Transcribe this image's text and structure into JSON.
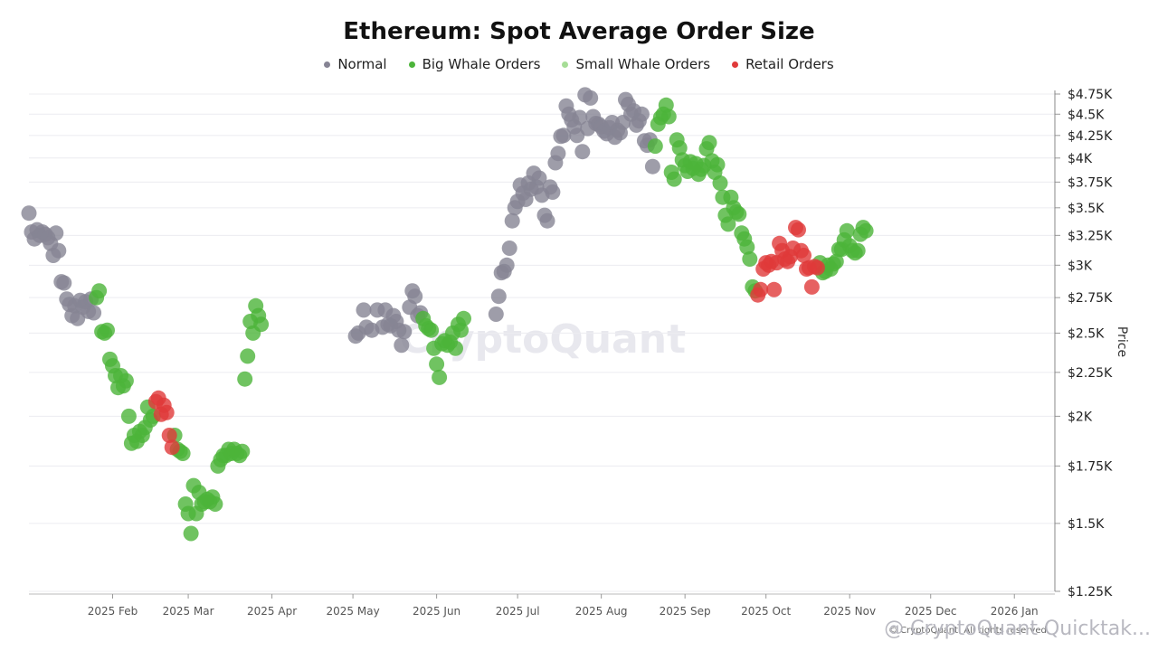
{
  "chart_data": {
    "type": "scatter",
    "title": "Ethereum: Spot Average Order Size",
    "ylabel": "Price",
    "xlabel": "",
    "y_scale": "log",
    "ylim": [
      1250,
      4750
    ],
    "y_ticks": [
      {
        "value": 4750,
        "label": "$4.75K"
      },
      {
        "value": 4500,
        "label": "$4.5K"
      },
      {
        "value": 4250,
        "label": "$4.25K"
      },
      {
        "value": 4000,
        "label": "$4K"
      },
      {
        "value": 3750,
        "label": "$3.75K"
      },
      {
        "value": 3500,
        "label": "$3.5K"
      },
      {
        "value": 3250,
        "label": "$3.25K"
      },
      {
        "value": 3000,
        "label": "$3K"
      },
      {
        "value": 2750,
        "label": "$2.75K"
      },
      {
        "value": 2500,
        "label": "$2.5K"
      },
      {
        "value": 2250,
        "label": "$2.25K"
      },
      {
        "value": 2000,
        "label": "$2K"
      },
      {
        "value": 1750,
        "label": "$1.75K"
      },
      {
        "value": 1500,
        "label": "$1.5K"
      },
      {
        "value": 1250,
        "label": "$1.25K"
      }
    ],
    "x_ticks": [
      {
        "day": 31,
        "label": "2025 Feb"
      },
      {
        "day": 59,
        "label": "2025 Mar"
      },
      {
        "day": 90,
        "label": "2025 Apr"
      },
      {
        "day": 120,
        "label": "2025 May"
      },
      {
        "day": 151,
        "label": "2025 Jun"
      },
      {
        "day": 181,
        "label": "2025 Jul"
      },
      {
        "day": 212,
        "label": "2025 Aug"
      },
      {
        "day": 243,
        "label": "2025 Sep"
      },
      {
        "day": 273,
        "label": "2025 Oct"
      },
      {
        "day": 304,
        "label": "2025 Nov"
      },
      {
        "day": 334,
        "label": "2025 Dec"
      },
      {
        "day": 365,
        "label": "2026 Jan"
      }
    ],
    "x_range_days": [
      0,
      380
    ],
    "x_axis_note": "x values are days since 2025-01-01",
    "legend": [
      {
        "name": "Normal",
        "color": "#868494"
      },
      {
        "name": "Big Whale Orders",
        "color": "#4cb43a"
      },
      {
        "name": "Small Whale Orders",
        "color": "#a6dd96"
      },
      {
        "name": "Retail Orders",
        "color": "#e03a3a"
      }
    ],
    "series": [
      {
        "name": "Normal",
        "color": "#868494",
        "points": [
          [
            0,
            3450
          ],
          [
            1,
            3280
          ],
          [
            2,
            3220
          ],
          [
            3,
            3300
          ],
          [
            4,
            3250
          ],
          [
            5,
            3280
          ],
          [
            6,
            3260
          ],
          [
            7,
            3230
          ],
          [
            8,
            3180
          ],
          [
            9,
            3080
          ],
          [
            10,
            3270
          ],
          [
            11,
            3120
          ],
          [
            12,
            2870
          ],
          [
            13,
            2860
          ],
          [
            14,
            2740
          ],
          [
            15,
            2700
          ],
          [
            16,
            2620
          ],
          [
            17,
            2690
          ],
          [
            18,
            2600
          ],
          [
            19,
            2730
          ],
          [
            20,
            2680
          ],
          [
            21,
            2720
          ],
          [
            22,
            2650
          ],
          [
            23,
            2740
          ],
          [
            24,
            2640
          ],
          [
            121,
            2480
          ],
          [
            122,
            2500
          ],
          [
            124,
            2660
          ],
          [
            125,
            2540
          ],
          [
            127,
            2520
          ],
          [
            129,
            2660
          ],
          [
            131,
            2540
          ],
          [
            132,
            2660
          ],
          [
            133,
            2560
          ],
          [
            134,
            2550
          ],
          [
            135,
            2620
          ],
          [
            136,
            2580
          ],
          [
            137,
            2520
          ],
          [
            138,
            2420
          ],
          [
            139,
            2510
          ],
          [
            141,
            2680
          ],
          [
            142,
            2800
          ],
          [
            143,
            2760
          ],
          [
            144,
            2620
          ],
          [
            145,
            2640
          ],
          [
            173,
            2630
          ],
          [
            174,
            2760
          ],
          [
            175,
            2940
          ],
          [
            176,
            2950
          ],
          [
            177,
            3000
          ],
          [
            178,
            3140
          ],
          [
            179,
            3380
          ],
          [
            180,
            3500
          ],
          [
            181,
            3560
          ],
          [
            182,
            3720
          ],
          [
            183,
            3640
          ],
          [
            184,
            3580
          ],
          [
            185,
            3740
          ],
          [
            186,
            3680
          ],
          [
            187,
            3840
          ],
          [
            188,
            3700
          ],
          [
            189,
            3790
          ],
          [
            190,
            3620
          ],
          [
            191,
            3430
          ],
          [
            192,
            3380
          ],
          [
            193,
            3700
          ],
          [
            194,
            3650
          ],
          [
            195,
            3950
          ],
          [
            196,
            4050
          ],
          [
            197,
            4240
          ],
          [
            198,
            4250
          ],
          [
            199,
            4600
          ],
          [
            200,
            4500
          ],
          [
            201,
            4430
          ],
          [
            202,
            4350
          ],
          [
            203,
            4250
          ],
          [
            204,
            4460
          ],
          [
            205,
            4070
          ],
          [
            206,
            4740
          ],
          [
            207,
            4330
          ],
          [
            208,
            4700
          ],
          [
            209,
            4470
          ],
          [
            210,
            4390
          ],
          [
            211,
            4380
          ],
          [
            212,
            4350
          ],
          [
            213,
            4300
          ],
          [
            214,
            4270
          ],
          [
            215,
            4340
          ],
          [
            216,
            4400
          ],
          [
            217,
            4230
          ],
          [
            218,
            4310
          ],
          [
            219,
            4280
          ],
          [
            220,
            4400
          ],
          [
            221,
            4680
          ],
          [
            222,
            4620
          ],
          [
            223,
            4500
          ],
          [
            224,
            4540
          ],
          [
            225,
            4370
          ],
          [
            226,
            4420
          ],
          [
            227,
            4500
          ],
          [
            228,
            4190
          ],
          [
            229,
            4140
          ],
          [
            230,
            4200
          ],
          [
            231,
            3910
          ]
        ]
      },
      {
        "name": "Big Whale Orders",
        "color": "#4cb43a",
        "points": [
          [
            25,
            2750
          ],
          [
            26,
            2800
          ],
          [
            27,
            2510
          ],
          [
            28,
            2500
          ],
          [
            29,
            2520
          ],
          [
            30,
            2330
          ],
          [
            31,
            2290
          ],
          [
            32,
            2230
          ],
          [
            33,
            2160
          ],
          [
            34,
            2230
          ],
          [
            35,
            2170
          ],
          [
            36,
            2200
          ],
          [
            37,
            2000
          ],
          [
            38,
            1860
          ],
          [
            39,
            1900
          ],
          [
            40,
            1870
          ],
          [
            41,
            1920
          ],
          [
            42,
            1900
          ],
          [
            43,
            1940
          ],
          [
            44,
            2050
          ],
          [
            45,
            1980
          ],
          [
            46,
            2000
          ],
          [
            54,
            1900
          ],
          [
            55,
            1830
          ],
          [
            56,
            1820
          ],
          [
            57,
            1810
          ],
          [
            58,
            1580
          ],
          [
            59,
            1540
          ],
          [
            60,
            1460
          ],
          [
            61,
            1660
          ],
          [
            62,
            1540
          ],
          [
            63,
            1630
          ],
          [
            64,
            1580
          ],
          [
            65,
            1590
          ],
          [
            66,
            1600
          ],
          [
            67,
            1590
          ],
          [
            68,
            1610
          ],
          [
            69,
            1580
          ],
          [
            70,
            1750
          ],
          [
            71,
            1780
          ],
          [
            72,
            1800
          ],
          [
            73,
            1800
          ],
          [
            74,
            1830
          ],
          [
            75,
            1810
          ],
          [
            76,
            1830
          ],
          [
            77,
            1810
          ],
          [
            78,
            1800
          ],
          [
            79,
            1820
          ],
          [
            80,
            2210
          ],
          [
            81,
            2350
          ],
          [
            82,
            2580
          ],
          [
            83,
            2500
          ],
          [
            84,
            2690
          ],
          [
            85,
            2620
          ],
          [
            86,
            2560
          ],
          [
            146,
            2600
          ],
          [
            147,
            2550
          ],
          [
            148,
            2530
          ],
          [
            149,
            2520
          ],
          [
            150,
            2400
          ],
          [
            151,
            2300
          ],
          [
            152,
            2220
          ],
          [
            153,
            2430
          ],
          [
            154,
            2450
          ],
          [
            155,
            2420
          ],
          [
            156,
            2440
          ],
          [
            157,
            2500
          ],
          [
            158,
            2400
          ],
          [
            159,
            2560
          ],
          [
            160,
            2520
          ],
          [
            161,
            2600
          ],
          [
            232,
            4130
          ],
          [
            233,
            4380
          ],
          [
            234,
            4460
          ],
          [
            235,
            4500
          ],
          [
            236,
            4610
          ],
          [
            237,
            4470
          ],
          [
            238,
            3850
          ],
          [
            239,
            3780
          ],
          [
            240,
            4200
          ],
          [
            241,
            4110
          ],
          [
            242,
            3980
          ],
          [
            243,
            3920
          ],
          [
            244,
            3860
          ],
          [
            245,
            3960
          ],
          [
            246,
            3890
          ],
          [
            247,
            3940
          ],
          [
            248,
            3830
          ],
          [
            249,
            3880
          ],
          [
            250,
            3920
          ],
          [
            251,
            4100
          ],
          [
            252,
            4170
          ],
          [
            253,
            3970
          ],
          [
            254,
            3850
          ],
          [
            255,
            3930
          ],
          [
            256,
            3740
          ],
          [
            257,
            3600
          ],
          [
            258,
            3430
          ],
          [
            259,
            3350
          ],
          [
            260,
            3600
          ],
          [
            261,
            3500
          ],
          [
            262,
            3460
          ],
          [
            263,
            3440
          ],
          [
            264,
            3270
          ],
          [
            265,
            3220
          ],
          [
            266,
            3150
          ],
          [
            267,
            3050
          ],
          [
            268,
            2830
          ],
          [
            269,
            2800
          ],
          [
            293,
            3020
          ],
          [
            294,
            2940
          ],
          [
            295,
            2950
          ],
          [
            296,
            3000
          ],
          [
            297,
            2970
          ],
          [
            298,
            3010
          ],
          [
            299,
            3030
          ],
          [
            300,
            3130
          ],
          [
            301,
            3130
          ],
          [
            302,
            3210
          ],
          [
            303,
            3290
          ],
          [
            304,
            3160
          ],
          [
            305,
            3120
          ],
          [
            306,
            3100
          ],
          [
            307,
            3120
          ],
          [
            308,
            3260
          ],
          [
            309,
            3320
          ],
          [
            310,
            3290
          ]
        ]
      },
      {
        "name": "Retail Orders",
        "color": "#e03a3a",
        "points": [
          [
            47,
            2080
          ],
          [
            48,
            2100
          ],
          [
            49,
            2010
          ],
          [
            50,
            2060
          ],
          [
            51,
            2020
          ],
          [
            52,
            1900
          ],
          [
            53,
            1840
          ],
          [
            270,
            2770
          ],
          [
            271,
            2810
          ],
          [
            272,
            2970
          ],
          [
            273,
            3020
          ],
          [
            274,
            3000
          ],
          [
            275,
            3030
          ],
          [
            276,
            2810
          ],
          [
            277,
            3020
          ],
          [
            278,
            3180
          ],
          [
            279,
            3120
          ],
          [
            280,
            3050
          ],
          [
            281,
            3030
          ],
          [
            282,
            3070
          ],
          [
            283,
            3140
          ],
          [
            284,
            3320
          ],
          [
            285,
            3300
          ],
          [
            286,
            3120
          ],
          [
            287,
            3080
          ],
          [
            288,
            2970
          ],
          [
            289,
            2980
          ],
          [
            290,
            2830
          ],
          [
            291,
            2990
          ],
          [
            292,
            2980
          ]
        ]
      }
    ]
  },
  "watermark": "CryptoQuant",
  "footer_handle": "@ CryptoQuant Quicktak...",
  "footer_credit": "© CryptoQuant. All rights reserved."
}
